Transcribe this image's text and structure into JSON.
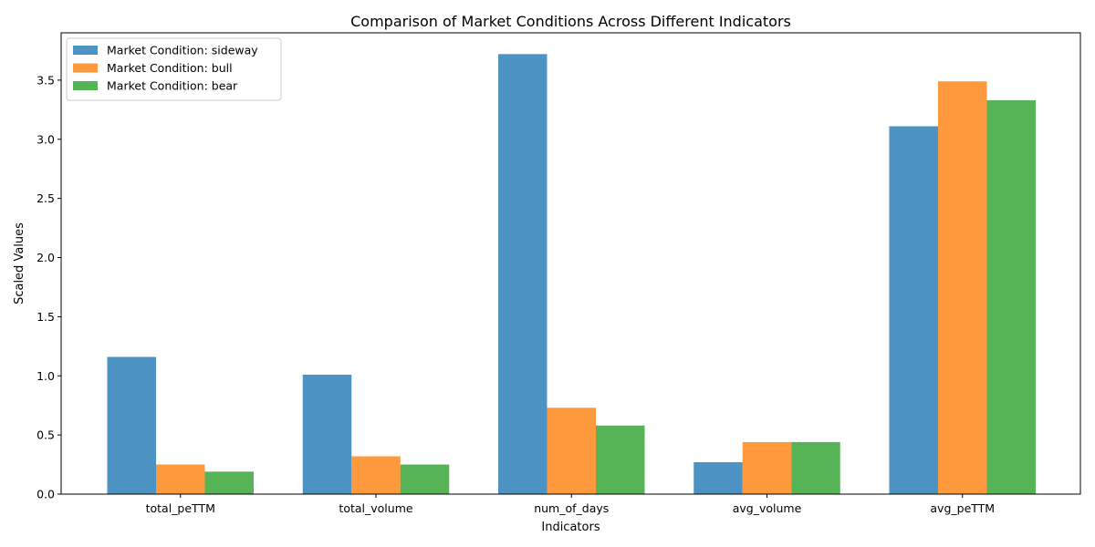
{
  "chart_data": {
    "type": "bar",
    "title": "Comparison of Market Conditions Across Different Indicators",
    "xlabel": "Indicators",
    "ylabel": "Scaled Values",
    "categories": [
      "total_peTTM",
      "total_volume",
      "num_of_days",
      "avg_volume",
      "avg_peTTM"
    ],
    "series": [
      {
        "name": "Market Condition: sideway",
        "color": "#1f77b4",
        "values": [
          1.16,
          1.01,
          3.72,
          0.27,
          3.11
        ]
      },
      {
        "name": "Market Condition: bull",
        "color": "#ff7f0e",
        "values": [
          0.25,
          0.32,
          0.73,
          0.44,
          3.49
        ]
      },
      {
        "name": "Market Condition: bear",
        "color": "#2ca02c",
        "values": [
          0.19,
          0.25,
          0.58,
          0.44,
          3.33
        ]
      }
    ],
    "ylim": [
      0,
      3.9
    ],
    "yticks": [
      "0.0",
      "0.5",
      "1.0",
      "1.5",
      "2.0",
      "2.5",
      "3.0",
      "3.5"
    ],
    "legend_position": "top-left",
    "grid": false
  }
}
